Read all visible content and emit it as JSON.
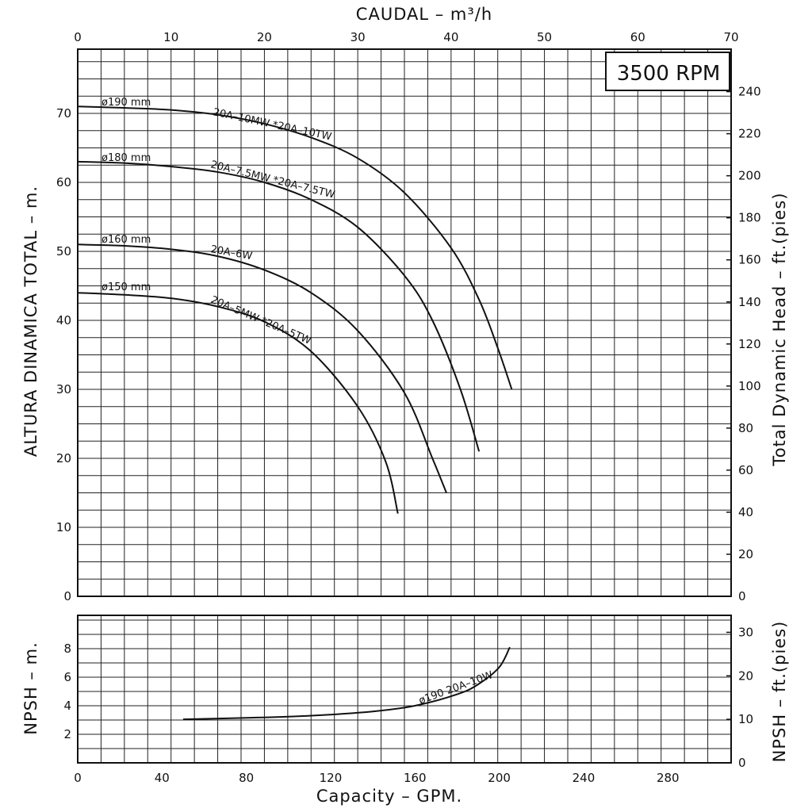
{
  "chart_data": [
    {
      "type": "line",
      "name": "head",
      "rpm_label": "3500 RPM",
      "top_axis": {
        "label": "CAUDAL  – m³/h",
        "ticks": [
          "0",
          "10",
          "20",
          "30",
          "40",
          "50",
          "60",
          "70"
        ],
        "range": [
          0,
          70
        ]
      },
      "left_axis": {
        "label": "ALTURA DINAMICA TOTAL – m.",
        "ticks": [
          "0",
          "10",
          "20",
          "30",
          "40",
          "50",
          "60",
          "70"
        ],
        "range": [
          0,
          70
        ]
      },
      "right_axis": {
        "label": "Total Dynamic Head – ft.(pies)",
        "ticks": [
          "0",
          "20",
          "40",
          "60",
          "80",
          "100",
          "120",
          "140",
          "160",
          "180",
          "200",
          "220",
          "240"
        ]
      },
      "grid": true,
      "series": [
        {
          "diameter_label": "ø190 mm",
          "model_label": "20A–10MW *20A–10TW",
          "x": [
            0,
            5,
            10,
            15,
            20,
            25,
            30,
            35,
            40,
            43,
            45,
            46.5
          ],
          "y": [
            71,
            70.8,
            70.5,
            69.8,
            68.5,
            66.5,
            63.5,
            58.5,
            50.5,
            43,
            36,
            30
          ]
        },
        {
          "diameter_label": "ø180 mm",
          "model_label": "20A–7.5MW *20A–7.5TW",
          "x": [
            0,
            5,
            10,
            15,
            20,
            25,
            30,
            35,
            38,
            41,
            43
          ],
          "y": [
            63,
            62.8,
            62.3,
            61.5,
            60,
            57.5,
            53.5,
            46.5,
            40,
            30,
            21
          ]
        },
        {
          "diameter_label": "ø160 mm",
          "model_label": "20A–6W",
          "x": [
            0,
            5,
            10,
            15,
            20,
            25,
            30,
            35,
            38,
            39.5
          ],
          "y": [
            51,
            50.8,
            50.3,
            49.3,
            47.3,
            44,
            38.5,
            29.5,
            20,
            15
          ]
        },
        {
          "diameter_label": "ø150 mm",
          "model_label": "20A–5MW *20A–5TW",
          "x": [
            0,
            5,
            10,
            15,
            20,
            25,
            30,
            33,
            34.3
          ],
          "y": [
            44,
            43.7,
            43.2,
            42,
            39.8,
            35.5,
            27.5,
            19.5,
            12
          ]
        }
      ]
    },
    {
      "type": "line",
      "name": "npsh",
      "bottom_axis": {
        "label": "Capacity – GPM.",
        "ticks": [
          "0",
          "40",
          "80",
          "120",
          "160",
          "200",
          "240",
          "280"
        ],
        "range": [
          0,
          310
        ]
      },
      "left_axis": {
        "label": "NPSH – m.",
        "ticks": [
          "2",
          "4",
          "6",
          "8"
        ],
        "range": [
          0,
          10
        ]
      },
      "right_axis": {
        "label": "NPSH – ft.(pies)",
        "ticks": [
          "0",
          "10",
          "20",
          "30"
        ]
      },
      "grid": true,
      "series": [
        {
          "model_label": "ø190 20A–10W",
          "x": [
            50,
            80,
            110,
            140,
            160,
            180,
            190,
            200,
            205
          ],
          "y": [
            3.05,
            3.15,
            3.3,
            3.6,
            4.0,
            4.8,
            5.5,
            6.7,
            8.1
          ]
        }
      ]
    }
  ]
}
